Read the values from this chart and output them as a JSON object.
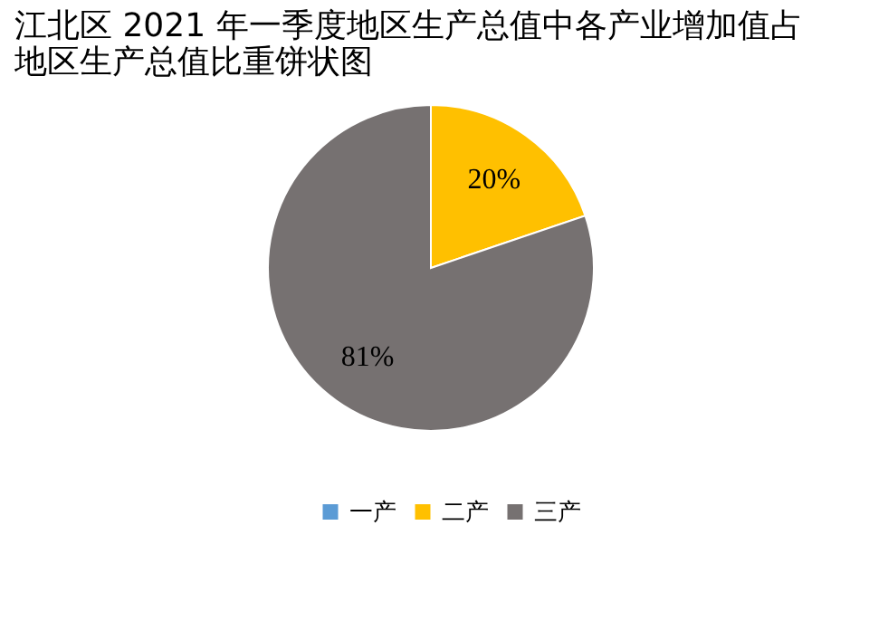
{
  "chart_data": {
    "type": "pie",
    "title": "江北区 2021 年一季度地区生产总值中各产业增加值占地区生产总值比重饼状图",
    "categories": [
      "一产",
      "二产",
      "三产"
    ],
    "values": [
      0,
      20,
      81
    ],
    "value_labels": [
      null,
      "20%",
      "81%"
    ],
    "colors": [
      "#5b9bd5",
      "#ffc000",
      "#767171"
    ],
    "legend": "bottom"
  }
}
